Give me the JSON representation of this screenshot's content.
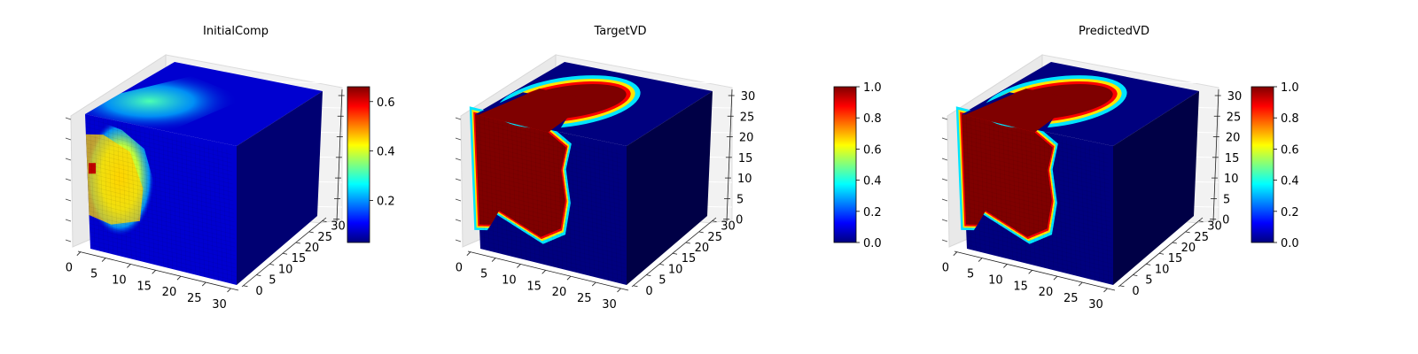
{
  "colormap": {
    "name": "jet",
    "stops": [
      "#00007f",
      "#0000ff",
      "#007fff",
      "#00ffff",
      "#7fff7f",
      "#ffff00",
      "#ff7f00",
      "#ff0000",
      "#7f0000"
    ]
  },
  "chart_data": [
    {
      "type": "heatmap",
      "subtype": "3d-voxel-cube",
      "title": "InitialComp",
      "x_ticks": [
        "0",
        "5",
        "10",
        "15",
        "20",
        "25",
        "30"
      ],
      "y_ticks": [
        "0",
        "5",
        "10",
        "15",
        "20",
        "25",
        "30"
      ],
      "z_ticks": [],
      "colorbar": {
        "min": 0.03,
        "max": 0.66,
        "ticks": [
          "0.2",
          "0.4",
          "0.6"
        ],
        "tick_values": [
          0.2,
          0.4,
          0.6
        ]
      },
      "face_values": {
        "background": 0.08,
        "blob_front": 0.45,
        "blob_top": 0.18,
        "hotspot": 0.62
      }
    },
    {
      "type": "heatmap",
      "subtype": "3d-voxel-cube",
      "title": "TargetVD",
      "x_ticks": [
        "0",
        "5",
        "10",
        "15",
        "20",
        "25",
        "30"
      ],
      "y_ticks": [
        "0",
        "5",
        "10",
        "15",
        "20",
        "25",
        "30"
      ],
      "z_ticks": [
        "0",
        "5",
        "10",
        "15",
        "20",
        "25",
        "30"
      ],
      "colorbar": {
        "min": 0.0,
        "max": 1.0,
        "ticks": [
          "0.0",
          "0.2",
          "0.4",
          "0.6",
          "0.8",
          "1.0"
        ],
        "tick_values": [
          0,
          0.2,
          0.4,
          0.6,
          0.8,
          1.0
        ]
      },
      "face_values": {
        "background": 0.0,
        "region": 1.0
      }
    },
    {
      "type": "heatmap",
      "subtype": "3d-voxel-cube",
      "title": "PredictedVD",
      "x_ticks": [
        "0",
        "5",
        "10",
        "15",
        "20",
        "25",
        "30"
      ],
      "y_ticks": [
        "0",
        "5",
        "10",
        "15",
        "20",
        "25",
        "30"
      ],
      "z_ticks": [
        "0",
        "5",
        "10",
        "15",
        "20",
        "25",
        "30"
      ],
      "colorbar": {
        "min": 0.0,
        "max": 1.0,
        "ticks": [
          "0.0",
          "0.2",
          "0.4",
          "0.6",
          "0.8",
          "1.0"
        ],
        "tick_values": [
          0,
          0.2,
          0.4,
          0.6,
          0.8,
          1.0
        ]
      },
      "face_values": {
        "background": 0.0,
        "region": 1.0
      }
    }
  ]
}
